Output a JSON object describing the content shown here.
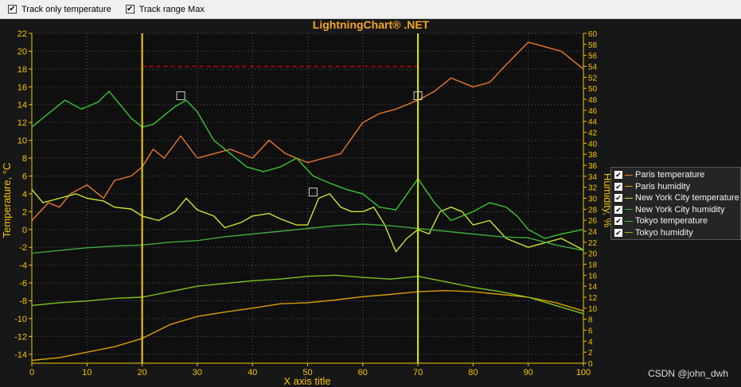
{
  "toolbar": {
    "track_temp_label": "Track only temperature",
    "track_range_label": "Track range Max",
    "track_temp_checked": true,
    "track_range_checked": true
  },
  "watermark": "CSDN @john_dwh",
  "colors": {
    "background": "#171717",
    "plot_background": "#0f0f0f",
    "axis": "#f5c400",
    "title": "#f5a623",
    "grid": "#5a5a5a",
    "marker_line": "#f2d000",
    "marker_line_right": "#d8f000",
    "range_max": "#d10000"
  },
  "chart_data": {
    "type": "line",
    "title": "LightningChart® .NET",
    "xlabel": "X axis title",
    "ylabel_left": "Temperature, °C",
    "ylabel_right": "Humidity, %",
    "xlim": [
      0,
      100
    ],
    "ylim_left": [
      -15,
      22
    ],
    "ylim_right": [
      0,
      60
    ],
    "x_ticks": [
      0,
      10,
      20,
      30,
      40,
      50,
      60,
      70,
      80,
      90,
      100
    ],
    "y_left_ticks": [
      22,
      20,
      18,
      16,
      14,
      12,
      10,
      8,
      6,
      4,
      2,
      0,
      -2,
      -4,
      -6,
      -8,
      -10,
      -12,
      -14
    ],
    "y_right_ticks": [
      60,
      58,
      56,
      54,
      52,
      50,
      48,
      46,
      44,
      42,
      40,
      38,
      36,
      34,
      32,
      30,
      28,
      26,
      24,
      22,
      20,
      18,
      16,
      14,
      12,
      10,
      8,
      6,
      4,
      2,
      0
    ],
    "grid": true,
    "legend_position": "right",
    "cursor_lines_x": [
      20,
      70
    ],
    "track_range_max": {
      "x": [
        20,
        70
      ],
      "y": 18.3
    },
    "tracked_points": [
      {
        "x": 27,
        "y": 15
      },
      {
        "x": 51,
        "y": 4.2
      },
      {
        "x": 70,
        "y": 15
      }
    ],
    "series": [
      {
        "name": "Paris temperature",
        "color": "#e8782a",
        "axis": "left",
        "x": [
          0,
          3,
          5,
          7,
          10,
          13,
          15,
          18,
          20,
          22,
          24,
          27,
          30,
          33,
          36,
          40,
          43,
          46,
          50,
          53,
          56,
          60,
          63,
          66,
          70,
          73,
          76,
          80,
          83,
          86,
          90,
          93,
          96,
          100
        ],
        "values": [
          1,
          3,
          2.5,
          4,
          5,
          3.5,
          5.5,
          6,
          7,
          9,
          8,
          10.5,
          8,
          8.5,
          9,
          8,
          10,
          8.5,
          7.5,
          8,
          8.5,
          12,
          13,
          13.5,
          14.5,
          15.5,
          17,
          16,
          16.5,
          18.5,
          21,
          20.5,
          20,
          18
        ]
      },
      {
        "name": "Paris humidity",
        "color": "#d9a000",
        "axis": "right",
        "x": [
          0,
          5,
          10,
          15,
          20,
          25,
          30,
          35,
          40,
          45,
          50,
          55,
          60,
          65,
          70,
          75,
          80,
          85,
          90,
          95,
          100
        ],
        "values": [
          0.5,
          1,
          2,
          3,
          4.5,
          7,
          8.5,
          9.3,
          10,
          10.8,
          11,
          11.5,
          12.1,
          12.5,
          13,
          13.2,
          13,
          12.5,
          12,
          11,
          9.5
        ]
      },
      {
        "name": "New York City temperature",
        "color": "#c8e632",
        "axis": "left",
        "x": [
          0,
          2,
          5,
          8,
          10,
          13,
          15,
          18,
          20,
          23,
          26,
          28,
          30,
          33,
          35,
          38,
          40,
          43,
          45,
          48,
          50,
          52,
          54,
          56,
          58,
          60,
          62,
          64,
          66,
          68,
          70,
          72,
          74,
          76,
          78,
          80,
          83,
          86,
          90,
          93,
          96,
          100
        ],
        "values": [
          4.5,
          3,
          3.5,
          4,
          3.5,
          3.2,
          2.5,
          2.3,
          1.5,
          1,
          2,
          3.5,
          2.2,
          1.5,
          0.2,
          0.8,
          1.5,
          1.8,
          1.2,
          0.5,
          0.5,
          3.5,
          4,
          2.5,
          2,
          2,
          2.5,
          0.5,
          -2.5,
          -1,
          0,
          -0.5,
          2,
          2.5,
          2,
          0.5,
          1,
          -1,
          -2,
          -1.5,
          -1,
          -2.3
        ]
      },
      {
        "name": "New York City humidity",
        "color": "#3faa3f",
        "axis": "right",
        "x": [
          0,
          5,
          10,
          15,
          20,
          25,
          30,
          35,
          40,
          45,
          50,
          55,
          60,
          65,
          70,
          75,
          80,
          85,
          90,
          95,
          100
        ],
        "values": [
          20,
          20.5,
          21,
          21.3,
          21.5,
          22,
          22.3,
          23,
          23.5,
          24,
          24.5,
          25,
          25.3,
          25,
          24.5,
          24,
          23.5,
          23,
          22.8,
          21.5,
          20.5
        ]
      },
      {
        "name": "Tokyo temperature",
        "color": "#39c432",
        "axis": "left",
        "x": [
          0,
          3,
          6,
          9,
          12,
          14,
          16,
          18,
          20,
          22,
          24,
          26,
          28,
          30,
          33,
          36,
          39,
          42,
          45,
          48,
          51,
          54,
          57,
          60,
          63,
          66,
          70,
          73,
          76,
          80,
          83,
          86,
          88,
          90,
          93,
          96,
          100
        ],
        "values": [
          11.5,
          13,
          14.5,
          13.5,
          14.3,
          15.5,
          14,
          12.5,
          11.5,
          11.8,
          12.8,
          13.8,
          14.5,
          13.2,
          10,
          8.5,
          7,
          6.5,
          7,
          8,
          6,
          5.2,
          4.5,
          4,
          2.5,
          2.2,
          5.7,
          3,
          1,
          2,
          3,
          2.5,
          1.5,
          0,
          -1,
          -0.5,
          0
        ]
      },
      {
        "name": "Tokyo humidity",
        "color": "#7dc31a",
        "axis": "right",
        "x": [
          0,
          5,
          10,
          15,
          20,
          25,
          30,
          35,
          40,
          45,
          50,
          55,
          60,
          65,
          70,
          75,
          80,
          85,
          90,
          95,
          100
        ],
        "values": [
          10.5,
          11,
          11.3,
          11.8,
          12,
          13,
          14,
          14.5,
          15,
          15.3,
          15.8,
          16,
          15.6,
          15.3,
          15.8,
          14.8,
          13.8,
          13,
          12,
          10.5,
          9
        ]
      }
    ]
  }
}
